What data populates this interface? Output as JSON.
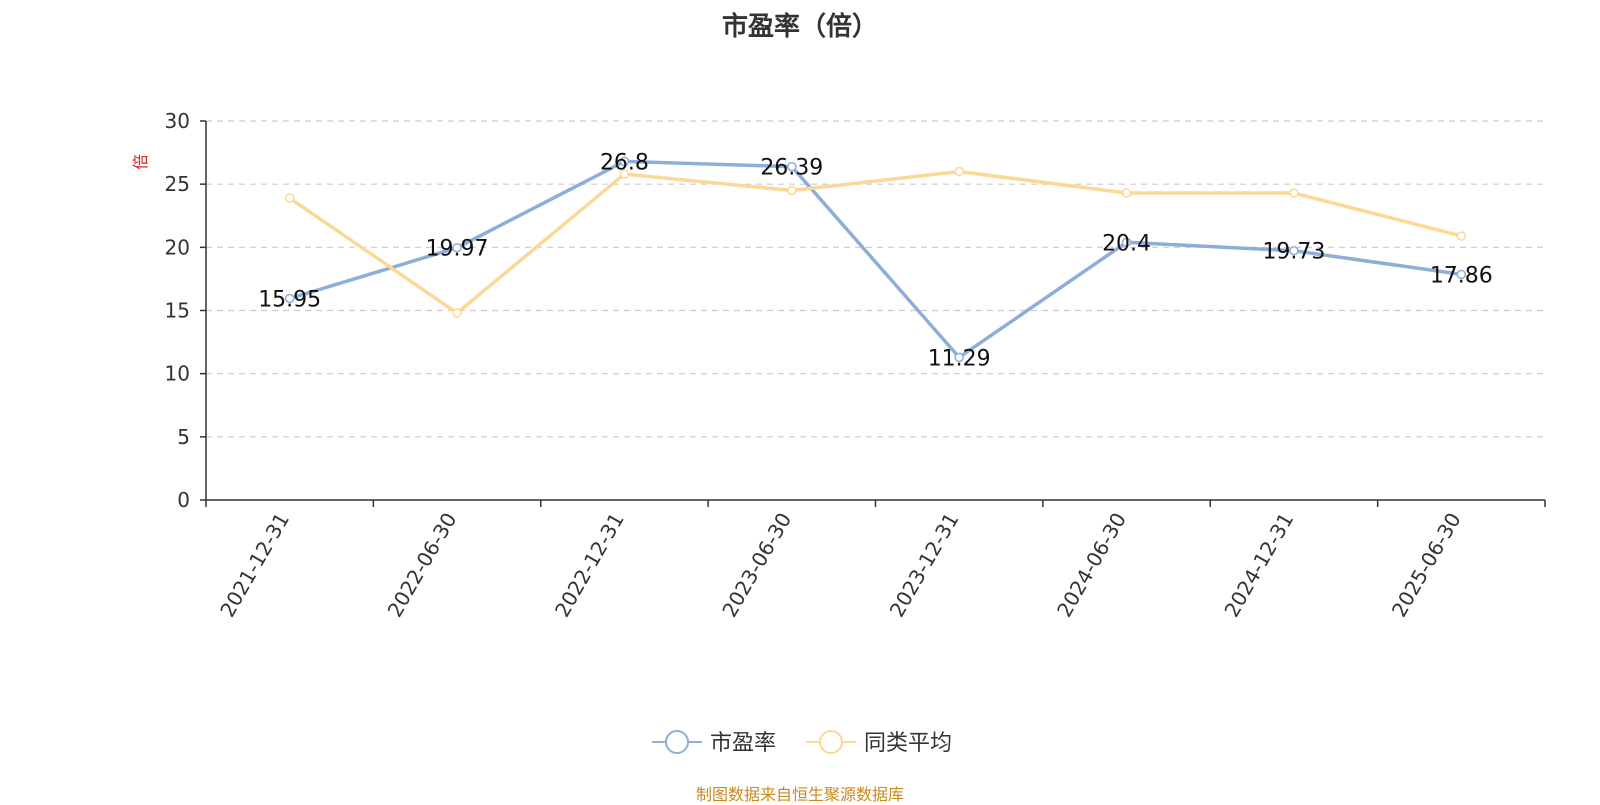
{
  "colors": {
    "series1": "#8eadd8",
    "series2": "#fcd896",
    "source": "#c98a1c",
    "unit": "#e02020",
    "grid": "#cccccc",
    "axis": "#333333"
  },
  "chart_data": {
    "type": "line",
    "title": "市盈率（倍）",
    "y_unit": "倍",
    "ylim": [
      0,
      30
    ],
    "yticks": [
      "0",
      "5",
      "10",
      "15",
      "20",
      "25",
      "30"
    ],
    "categories": [
      "2021-12-31",
      "2022-06-30",
      "2022-12-31",
      "2023-06-30",
      "2023-12-31",
      "2024-06-30",
      "2024-12-31",
      "2025-06-30"
    ],
    "grid": true,
    "legend_position": "bottom-center",
    "series": [
      {
        "name": "市盈率",
        "values": [
          15.95,
          19.97,
          26.8,
          26.39,
          11.29,
          20.4,
          19.73,
          17.86
        ],
        "labels": [
          "15.95",
          "19.97",
          "26.8",
          "26.39",
          "11.29",
          "20.4",
          "19.73",
          "17.86"
        ]
      },
      {
        "name": "同类平均",
        "values": [
          23.9,
          14.8,
          25.8,
          24.5,
          26.0,
          24.3,
          24.3,
          20.9
        ]
      }
    ]
  },
  "source_note": "制图数据来自恒生聚源数据库"
}
